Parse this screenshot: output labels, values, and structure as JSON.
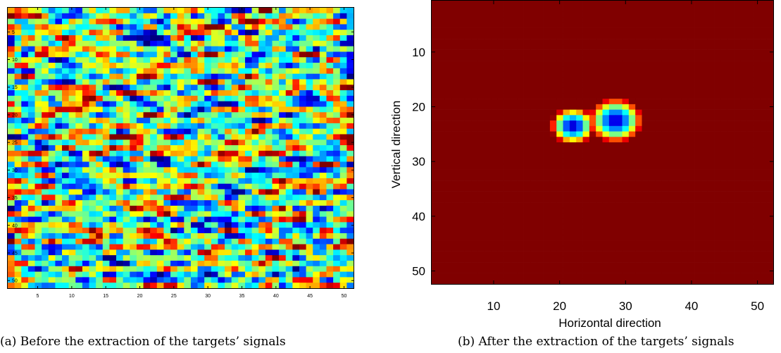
{
  "chart_data": [
    {
      "type": "heatmap",
      "title": "",
      "caption": "(a) Before the extraction of the targets’ signals",
      "xlabel": "",
      "ylabel": "",
      "grid": "off",
      "xlim": [
        1,
        51
      ],
      "ylim": [
        1,
        51
      ],
      "rows": 51,
      "cols": 51,
      "colormap": "jet",
      "x_ticks": [
        "5",
        "10",
        "15",
        "20",
        "25",
        "30",
        "35",
        "40",
        "45",
        "50"
      ],
      "y_ticks": [
        "5",
        "10",
        "15",
        "20",
        "25",
        "30",
        "35",
        "40",
        "45",
        "50"
      ],
      "value_range": [
        -1,
        1
      ],
      "values_description_note": null
    },
    {
      "type": "heatmap",
      "title": "",
      "caption": "(b) After the extraction of the targets’ signals",
      "xlabel": "Horizontal direction",
      "ylabel": "Vertical direction",
      "grid": "off",
      "xlim": [
        1,
        52
      ],
      "ylim": [
        1,
        52
      ],
      "rows": 52,
      "cols": 52,
      "colormap": "jet",
      "background_value": 1,
      "x_ticks": [
        "10",
        "20",
        "30",
        "40",
        "50"
      ],
      "y_ticks": [
        "10",
        "20",
        "30",
        "40",
        "50"
      ],
      "targets": [
        {
          "x": 22,
          "y": 23.5,
          "radius": 2.4
        },
        {
          "x": 28.5,
          "y": 22.5,
          "radius": 3.1
        }
      ]
    }
  ]
}
